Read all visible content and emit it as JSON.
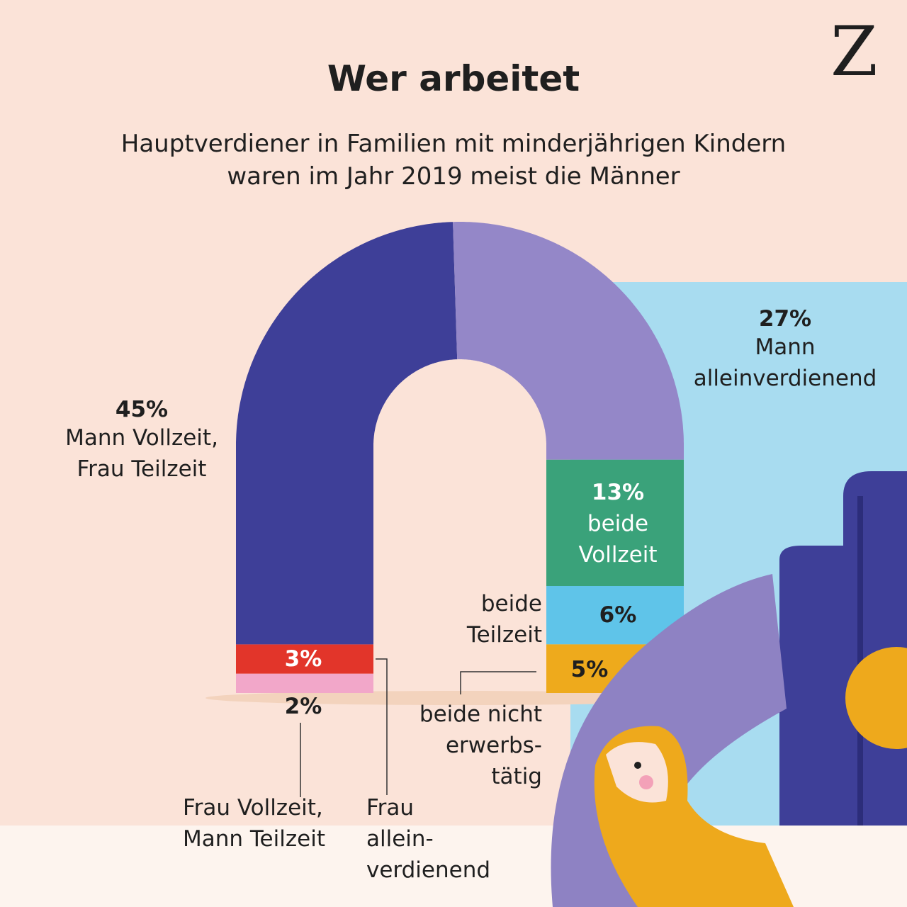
{
  "logo": "Z",
  "chart_data": {
    "type": "ubar",
    "title": "Wer arbeitet",
    "subtitle": "Hauptverdiener in Familien mit minderjährigen Kindern\nwaren im Jahr 2019 meist die Männer",
    "categories": [
      "Frau Vollzeit,\nMann Teilzeit",
      "Frau\nallein-\nverdienend",
      "Mann Vollzeit,\nFrau Teilzeit",
      "Mann\nalleinverdienend",
      "beide\nVollzeit",
      "beide\nTeilzeit",
      "beide nicht\nerwerbs-\ntätig"
    ],
    "values": [
      2,
      3,
      45,
      27,
      13,
      6,
      5
    ],
    "value_labels": [
      "2%",
      "3%",
      "45%",
      "27%",
      "13%",
      "6%",
      "5%"
    ],
    "colors": [
      "#f2a7c9",
      "#e2352a",
      "#3e3f98",
      "#9487c8",
      "#3aa27a",
      "#5fc4e9",
      "#eeaa1c"
    ]
  }
}
